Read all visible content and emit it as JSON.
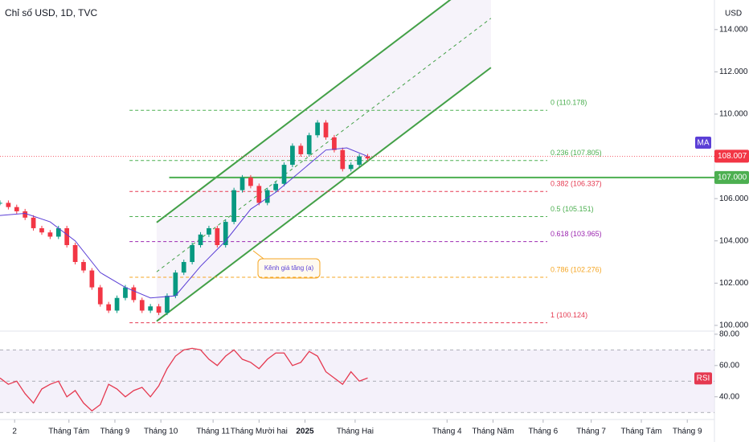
{
  "chart_data": [
    {
      "type": "candlestick",
      "title": "Chỉ số USD, 1D, TVC",
      "unit": "USD",
      "xlim": [
        0,
        342
      ],
      "ylim": [
        99.73,
        115.4
      ],
      "xticks": [
        {
          "value": 7,
          "label": "2"
        },
        {
          "value": 33,
          "label": "Tháng Tám"
        },
        {
          "value": 55,
          "label": "Tháng 9"
        },
        {
          "value": 77,
          "label": "Tháng 10"
        },
        {
          "value": 102,
          "label": "Tháng 11"
        },
        {
          "value": 124,
          "label": "Tháng Mười hai"
        },
        {
          "value": 146,
          "label": "2025"
        },
        {
          "value": 170,
          "label": "Tháng Hai"
        },
        {
          "value": 214,
          "label": "Tháng 4"
        },
        {
          "value": 236,
          "label": "Tháng Năm"
        },
        {
          "value": 260,
          "label": "Tháng 6"
        },
        {
          "value": 283,
          "label": "Tháng 7"
        },
        {
          "value": 307,
          "label": "Tháng Tám"
        },
        {
          "value": 329,
          "label": "Tháng 9"
        }
      ],
      "yticks": [
        {
          "value": 100,
          "label": "100.000"
        },
        {
          "value": 102,
          "label": "102.000"
        },
        {
          "value": 104,
          "label": "104.000"
        },
        {
          "value": 106,
          "label": "106.000"
        },
        {
          "value": 108,
          "label": "108.000"
        },
        {
          "value": 110,
          "label": "110.000"
        },
        {
          "value": 112,
          "label": "112.000"
        },
        {
          "value": 114,
          "label": "114.000"
        }
      ],
      "up_color": "#089981",
      "down_color": "#f23645",
      "candles": {
        "x": [
          0,
          4,
          8,
          12,
          16,
          20,
          24,
          28,
          32,
          36,
          40,
          44,
          48,
          52,
          56,
          60,
          64,
          68,
          72,
          76,
          80,
          84,
          88,
          92,
          96,
          100,
          104,
          108,
          112,
          116,
          120,
          124,
          128,
          132,
          136,
          140,
          144,
          148,
          152,
          156,
          160,
          164,
          168,
          172,
          176
        ],
        "values": [
          105.8,
          105.6,
          105.4,
          105.1,
          104.6,
          104.4,
          104.2,
          104.6,
          103.8,
          103.0,
          102.6,
          101.8,
          101.0,
          100.7,
          101.3,
          101.8,
          101.2,
          100.7,
          100.9,
          100.6,
          101.4,
          102.5,
          103.0,
          103.8,
          104.3,
          104.6,
          103.8,
          104.9,
          106.4,
          107.0,
          106.6,
          105.8,
          106.4,
          106.7,
          107.6,
          108.5,
          108.1,
          109.0,
          109.6,
          108.9,
          108.3,
          107.4,
          107.6,
          108.0,
          107.9
        ]
      },
      "ma": {
        "name": "MA",
        "color": "#5b3fd6",
        "x": [
          0,
          12,
          24,
          36,
          48,
          60,
          72,
          84,
          96,
          108,
          120,
          132,
          144,
          156,
          166,
          176
        ],
        "values": [
          105.2,
          105.3,
          104.9,
          104.0,
          102.5,
          101.8,
          101.3,
          101.4,
          102.8,
          104.0,
          105.5,
          106.3,
          107.3,
          108.3,
          108.4,
          108.0
        ]
      },
      "last_price": {
        "value": 108.007,
        "label": "108.007",
        "color": "#f23645"
      },
      "hline": {
        "value": 107,
        "label": "107.000",
        "color": "#4caf50",
        "from": 81
      },
      "channel": {
        "label": "Kênh giá tăng (a)",
        "start": [
          75,
          100.2
        ],
        "end": [
          235,
          112.2
        ],
        "width": 4.67,
        "color": "#43a047"
      },
      "fib": {
        "range": [
          62,
          262
        ],
        "levels": [
          {
            "value": 110.178,
            "label": "0 (110.178)",
            "color": "#4caf50"
          },
          {
            "value": 107.805,
            "label": "0.236 (107.805)",
            "color": "#4caf50"
          },
          {
            "value": 106.337,
            "label": "0.382 (106.337)",
            "color": "#e53950"
          },
          {
            "value": 105.151,
            "label": "0.5 (105.151)",
            "color": "#4caf50"
          },
          {
            "value": 103.965,
            "label": "0.618 (103.965)",
            "color": "#9c27b0"
          },
          {
            "value": 102.276,
            "label": "0.786 (102.276)",
            "color": "#f5a623"
          },
          {
            "value": 100.124,
            "label": "1 (100.124)",
            "color": "#e53950"
          }
        ]
      }
    },
    {
      "type": "line",
      "name": "RSI",
      "color": "#e53950",
      "ylim": [
        26,
        82
      ],
      "yticks": [
        {
          "value": 80,
          "label": "80.00"
        },
        {
          "value": 60,
          "label": "60.00"
        },
        {
          "value": 40,
          "label": "40.00"
        }
      ],
      "band": [
        30,
        50,
        70
      ],
      "x": [
        0,
        4,
        8,
        12,
        16,
        20,
        24,
        28,
        32,
        36,
        40,
        44,
        48,
        52,
        56,
        60,
        64,
        68,
        72,
        76,
        80,
        84,
        88,
        92,
        96,
        100,
        104,
        108,
        112,
        116,
        120,
        124,
        128,
        132,
        136,
        140,
        144,
        148,
        152,
        156,
        160,
        164,
        168,
        172,
        176
      ],
      "values": [
        52,
        48,
        50,
        42,
        36,
        45,
        48,
        50,
        40,
        44,
        36,
        31,
        35,
        48,
        45,
        40,
        44,
        46,
        40,
        47,
        58,
        66,
        70,
        71,
        70,
        64,
        60,
        66,
        70,
        64,
        62,
        58,
        64,
        68,
        68,
        60,
        62,
        69,
        66,
        56,
        52,
        48,
        56,
        50,
        52
      ]
    }
  ]
}
